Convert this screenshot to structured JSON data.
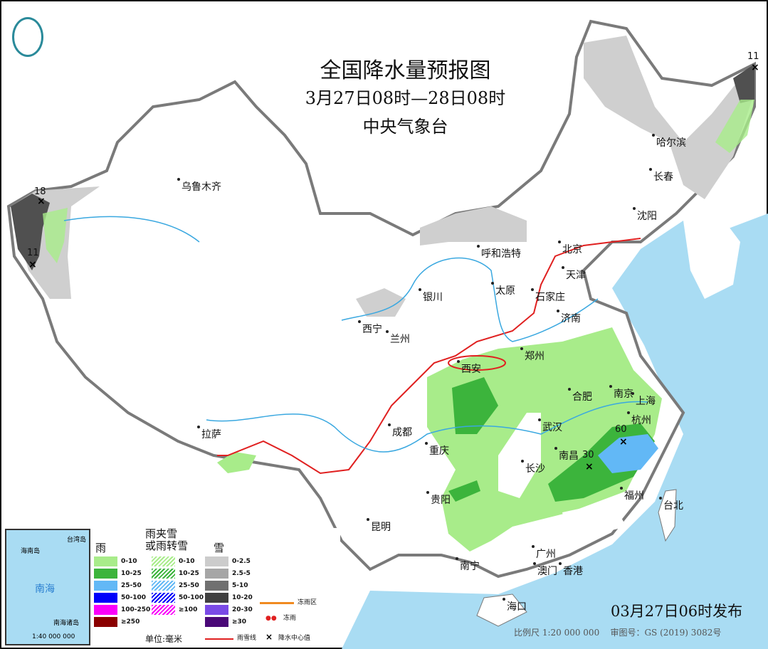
{
  "title": "全国降水量预报图",
  "period": "3月27日08时—28日08时",
  "issuer": "中央气象台",
  "issue_time": "03月27日06时发布",
  "scale": "比例尺 1:20 000 000",
  "review_number": "审图号：GS (2019) 3082号",
  "cities": [
    "乌鲁木齐",
    "哈尔滨",
    "长春",
    "沈阳",
    "北京",
    "天津",
    "呼和浩特",
    "银川",
    "太原",
    "石家庄",
    "济南",
    "西宁",
    "兰州",
    "郑州",
    "西安",
    "合肥",
    "南京",
    "上海",
    "杭州",
    "武汉",
    "南昌",
    "长沙",
    "福州",
    "台北",
    "成都",
    "重庆",
    "贵阳",
    "昆明",
    "拉萨",
    "南宁",
    "广州",
    "澳门",
    "香港",
    "海口"
  ],
  "precip_centers": [
    "11",
    "18",
    "11",
    "60",
    "30"
  ],
  "inset": {
    "sea_label": "南海",
    "islands": [
      "海南岛",
      "台湾岛",
      "南海诸岛"
    ],
    "scale": "1:40 000 000"
  },
  "legend": {
    "rain": {
      "title": "雨",
      "items": [
        "0-10",
        "10-25",
        "25-50",
        "50-100",
        "100-250",
        "≥250"
      ],
      "colors": [
        "#a8ec8a",
        "#3cb43c",
        "#62b8f6",
        "#0000fa",
        "#fa00fa",
        "#8a0000"
      ]
    },
    "sleet": {
      "title": "雨夹雪\n或雨转雪",
      "items": [
        "0-10",
        "10-25",
        "25-50",
        "50-100",
        "≥100"
      ],
      "colors": [
        "#a8ec8a",
        "#3cb43c",
        "#62b8f6",
        "#0000fa",
        "#fa00fa"
      ]
    },
    "snow": {
      "title": "雪",
      "items": [
        "0-2.5",
        "2.5-5",
        "5-10",
        "10-20",
        "20-30",
        "≥30"
      ],
      "colors": [
        "#cccccc",
        "#a6a6a6",
        "#707070",
        "#404040",
        "#7a4ae6",
        "#4a0878"
      ]
    },
    "unit": "单位:毫米",
    "symbols": [
      "冻雨区",
      "冻雨",
      "雨雪线",
      "降水中心值"
    ]
  },
  "colors": {
    "sea": "#a9dcf3",
    "border": "#777777",
    "river": "#3aa8e0",
    "line": "#e02020"
  }
}
